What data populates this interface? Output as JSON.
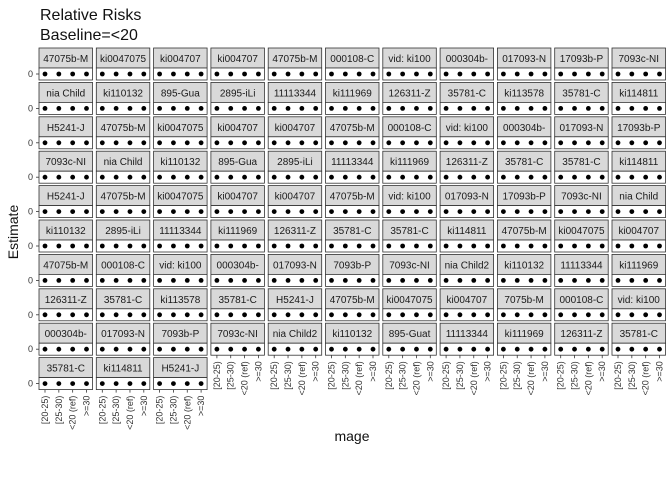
{
  "chart_data": {
    "type": "scatter",
    "title": "Relative Risks",
    "subtitle": "Baseline=<20",
    "xlabel": "mage",
    "ylabel": "Estimate",
    "categories": [
      "[20-25)",
      "[25-30)",
      "<20 (ref)",
      ">=30"
    ],
    "y_tick_label": "0",
    "facet_labels": [
      "47075b-M",
      "ki0047075",
      "ki004707",
      "ki004707",
      "47075b-M",
      "000108-C",
      "vid: ki100",
      "000304b-",
      "017093-N",
      "17093b-P",
      "7093c-NI",
      "nia Child",
      "ki110132",
      "895-Gua",
      "2895-iLi",
      "11113344",
      "ki111969",
      "126311-Z",
      "35781-C",
      "ki113578",
      "35781-C",
      "ki114811",
      "H5241-J",
      "47075b-M",
      "ki0047075",
      "ki004707",
      "ki004707",
      "47075b-M",
      "000108-C",
      "vid: ki100",
      "000304b-",
      "017093-N",
      "17093b-P",
      "7093c-NI",
      "nia Child",
      "ki110132",
      "895-Gua",
      "2895-iLi",
      "11113344",
      "ki111969",
      "126311-Z",
      "35781-C",
      "35781-C",
      "ki114811",
      "H5241-J",
      "47075b-M",
      "ki0047075",
      "ki004707",
      "ki004707",
      "47075b-M",
      "vid: ki100",
      "017093-N",
      "17093b-P",
      "7093c-NI",
      "nia Child",
      "ki110132",
      "2895-iLi",
      "11113344",
      "ki111969",
      "126311-Z",
      "35781-C",
      "35781-C",
      "ki114811",
      "47075b-M",
      "ki0047075",
      "ki004707",
      "47075b-M",
      "000108-C",
      "vid: ki100",
      "000304b-",
      "017093-N",
      "7093b-P",
      "7093c-NI",
      "nia Child2",
      "ki110132",
      "11113344",
      "ki111969",
      "126311-Z",
      "35781-C",
      "ki113578",
      "35781-C",
      "H5241-J",
      "47075b-M",
      "ki0047075",
      "ki004707",
      "7075b-M",
      "000108-C",
      "vid: ki100",
      "000304b-",
      "017093-N",
      "7093b-P",
      "7093c-NI",
      "nia Child2",
      "ki110132",
      "895-Guat",
      "11113344",
      "ki111969",
      "126311-Z",
      "35781-C",
      "35781-C",
      "ki114811",
      "H5241-J"
    ],
    "series": [
      {
        "values": [
          1,
          1,
          1,
          1
        ]
      }
    ],
    "ylim": [
      0,
      2
    ],
    "grid": false,
    "legend": "none"
  }
}
